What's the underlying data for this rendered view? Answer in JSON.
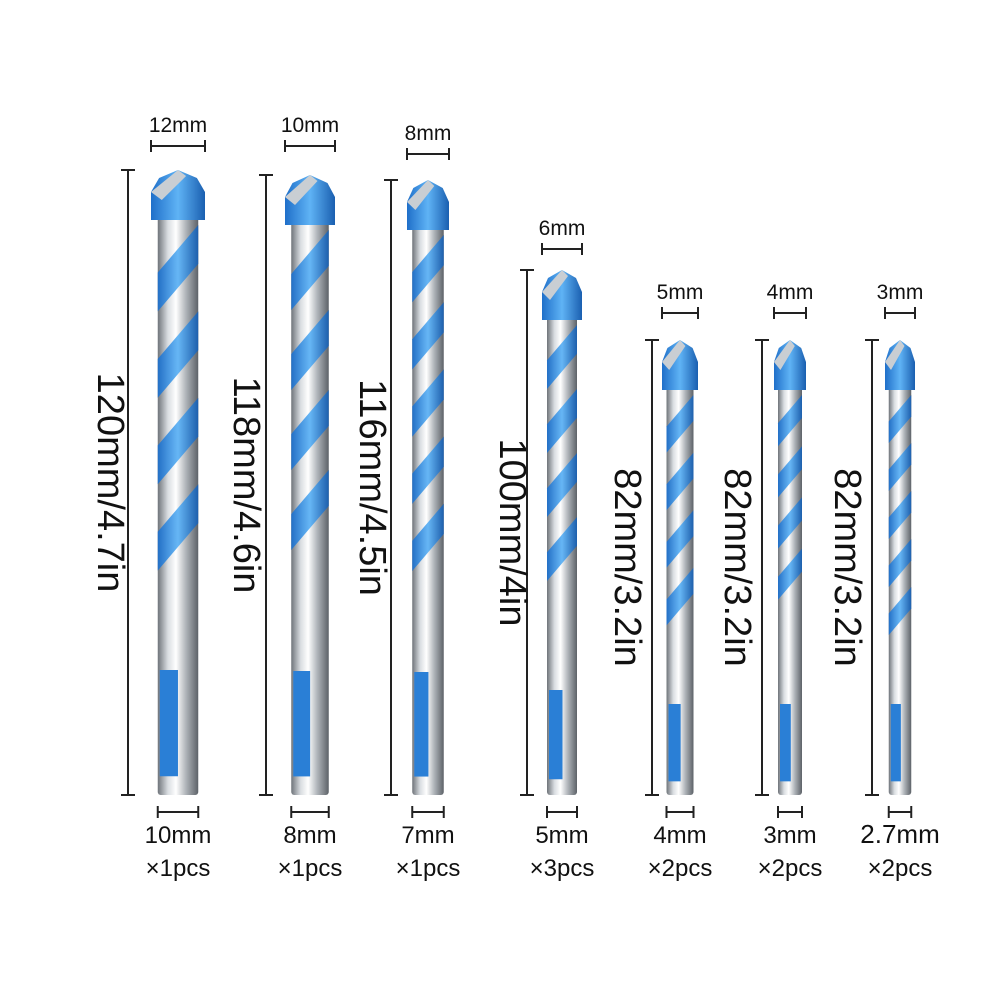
{
  "bits": [
    {
      "tip_size": "12mm",
      "length": "120mm/4.7in",
      "shank_size": "10mm",
      "quantity": "×1pcs"
    },
    {
      "tip_size": "10mm",
      "length": "118mm/4.6in",
      "shank_size": "8mm",
      "quantity": "×1pcs"
    },
    {
      "tip_size": "8mm",
      "length": "116mm/4.5in",
      "shank_size": "7mm",
      "quantity": "×1pcs"
    },
    {
      "tip_size": "6mm",
      "length": "100mm/4in",
      "shank_size": "5mm",
      "quantity": "×3pcs"
    },
    {
      "tip_size": "5mm",
      "length": "82mm/3.2in",
      "shank_size": "4mm",
      "quantity": "×2pcs"
    },
    {
      "tip_size": "4mm",
      "length": "82mm/3.2in",
      "shank_size": "3mm",
      "quantity": "×2pcs"
    },
    {
      "tip_size": "3mm",
      "length": "82mm/3.2in",
      "shank_size": "2.7mm",
      "quantity": "×2pcs"
    }
  ]
}
